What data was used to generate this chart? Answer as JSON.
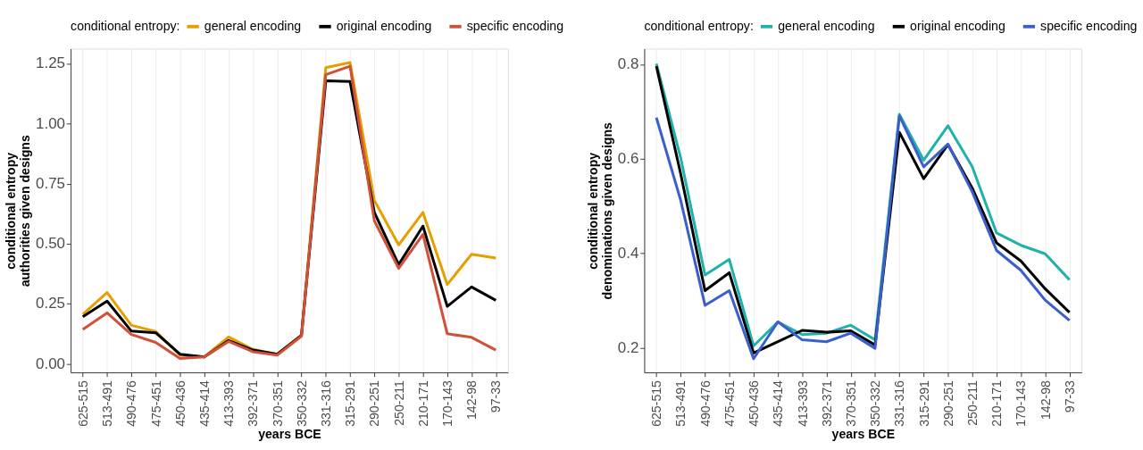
{
  "chart_data": [
    {
      "type": "line",
      "xlabel": "years BCE",
      "ylabel": "conditional entropy\nauthorities given designs",
      "legend_title": "conditional entropy:",
      "legend": "top",
      "grid": "x",
      "line_style": "solid",
      "marker": "none",
      "categories": [
        "625-515",
        "513-491",
        "490-476",
        "475-451",
        "450-436",
        "435-414",
        "413-393",
        "392-371",
        "370-351",
        "350-332",
        "331-316",
        "315-291",
        "290-251",
        "250-211",
        "210-171",
        "170-143",
        "142-98",
        "97-33"
      ],
      "ylim": [
        -0.036,
        1.312
      ],
      "yticks": [
        {
          "value": 0,
          "label": "0.00"
        },
        {
          "value": 0.25,
          "label": "0.25"
        },
        {
          "value": 0.5,
          "label": "0.50"
        },
        {
          "value": 0.75,
          "label": "0.75"
        },
        {
          "value": 1,
          "label": "1.00"
        },
        {
          "value": 1.25,
          "label": "1.25"
        }
      ],
      "series": [
        {
          "name": "general encoding",
          "color": "#e69f00",
          "values": [
            0.206,
            0.297,
            0.16,
            0.135,
            0.036,
            0.029,
            0.112,
            0.06,
            0.04,
            0.12,
            1.233,
            1.254,
            0.68,
            0.495,
            0.63,
            0.33,
            0.456,
            0.44
          ]
        },
        {
          "name": "original encoding",
          "color": "#000000",
          "values": [
            0.196,
            0.261,
            0.136,
            0.129,
            0.04,
            0.029,
            0.097,
            0.057,
            0.04,
            0.118,
            1.178,
            1.175,
            0.63,
            0.413,
            0.573,
            0.239,
            0.32,
            0.264
          ]
        },
        {
          "name": "specific encoding",
          "color": "#d1503a",
          "values": [
            0.143,
            0.212,
            0.122,
            0.089,
            0.022,
            0.029,
            0.093,
            0.05,
            0.036,
            0.115,
            1.204,
            1.239,
            0.595,
            0.397,
            0.538,
            0.125,
            0.11,
            0.057
          ]
        }
      ]
    },
    {
      "type": "line",
      "xlabel": "years BCE",
      "ylabel": "conditional entropy\ndenominations given designs",
      "legend_title": "conditional entropy:",
      "legend": "top",
      "grid": "x",
      "line_style": "solid",
      "marker": "none",
      "categories": [
        "625-515",
        "513-491",
        "490-476",
        "475-451",
        "450-436",
        "435-414",
        "413-393",
        "392-371",
        "370-351",
        "350-332",
        "331-316",
        "315-291",
        "290-251",
        "250-211",
        "210-171",
        "170-143",
        "142-98",
        "97-33"
      ],
      "ylim": [
        0.148,
        0.833
      ],
      "yticks": [
        0.2,
        0.4,
        0.6,
        0.8
      ],
      "series": [
        {
          "name": "general encoding",
          "color": "#20b2aa",
          "values": [
            0.801,
            0.602,
            0.354,
            0.387,
            0.204,
            0.255,
            0.228,
            0.231,
            0.248,
            0.217,
            0.694,
            0.597,
            0.67,
            0.583,
            0.443,
            0.417,
            0.399,
            0.344
          ]
        },
        {
          "name": "original encoding",
          "color": "#000000",
          "values": [
            0.796,
            0.568,
            0.321,
            0.359,
            0.189,
            0.213,
            0.237,
            0.233,
            0.236,
            0.206,
            0.656,
            0.558,
            0.63,
            0.538,
            0.422,
            0.384,
            0.325,
            0.275
          ]
        },
        {
          "name": "specific encoding",
          "color": "#3a5fcd",
          "values": [
            0.687,
            0.512,
            0.29,
            0.321,
            0.177,
            0.255,
            0.217,
            0.213,
            0.231,
            0.199,
            0.691,
            0.583,
            0.631,
            0.53,
            0.406,
            0.364,
            0.301,
            0.258
          ]
        }
      ]
    }
  ]
}
